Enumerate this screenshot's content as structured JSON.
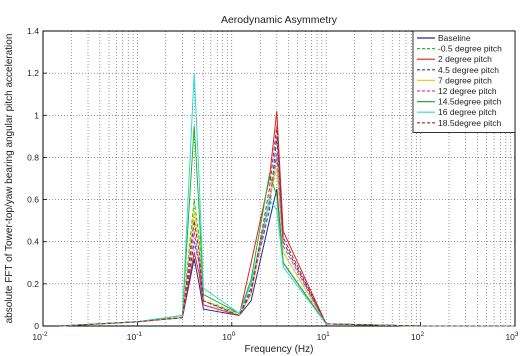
{
  "chart_data": {
    "type": "line",
    "title": "Aerodynamic Asymmetry",
    "xlabel": "Frequency (Hz)",
    "ylabel": "absolute FFT of Tower-top/yaw bearing angular pitch acceleration",
    "x_scale": "log",
    "xlim": [
      0.01,
      1000
    ],
    "ylim": [
      0,
      1.4
    ],
    "x_ticks": [
      {
        "value": 0.01,
        "base": "10",
        "exp": "-2"
      },
      {
        "value": 0.1,
        "base": "10",
        "exp": "-1"
      },
      {
        "value": 1,
        "base": "10",
        "exp": "0"
      },
      {
        "value": 10,
        "base": "10",
        "exp": "1"
      },
      {
        "value": 100,
        "base": "10",
        "exp": "2"
      },
      {
        "value": 1000,
        "base": "10",
        "exp": "3"
      }
    ],
    "y_ticks": [
      "0",
      "0.2",
      "0.4",
      "0.6",
      "0.8",
      "1",
      "1.2",
      "1.4"
    ],
    "grid": true,
    "legend_position": "top-right",
    "series": [
      {
        "name": "Baseline",
        "color": "#1f2a8c",
        "dash": "solid",
        "x": [
          0.015,
          0.1,
          0.3,
          0.4,
          0.45,
          0.5,
          1.2,
          1.6,
          2.5,
          3,
          3.5,
          10,
          100,
          1000
        ],
        "y": [
          0.0,
          0.02,
          0.04,
          0.32,
          0.2,
          0.08,
          0.05,
          0.12,
          0.5,
          0.65,
          0.3,
          0.01,
          0.0,
          0.0
        ]
      },
      {
        "name": "-0.5  degree pitch",
        "color": "#22c022",
        "dash": "dashed",
        "x": [
          0.015,
          0.1,
          0.3,
          0.4,
          0.45,
          0.5,
          1.2,
          1.6,
          2.5,
          3,
          3.5,
          10,
          100,
          1000
        ],
        "y": [
          0.0,
          0.02,
          0.05,
          0.6,
          0.42,
          0.12,
          0.06,
          0.2,
          0.58,
          0.8,
          0.35,
          0.01,
          0.0,
          0.0
        ]
      },
      {
        "name": "2     degree pitch",
        "color": "#e02020",
        "dash": "solid",
        "x": [
          0.015,
          0.1,
          0.3,
          0.4,
          0.45,
          0.5,
          1.2,
          1.6,
          2.5,
          3,
          3.5,
          10,
          100,
          1000
        ],
        "y": [
          0.0,
          0.02,
          0.04,
          0.35,
          0.25,
          0.1,
          0.05,
          0.3,
          0.7,
          1.02,
          0.45,
          0.01,
          0.0,
          0.0
        ]
      },
      {
        "name": "4.5   degree pitch",
        "color": "#3a3aa8",
        "dash": "dashed",
        "x": [
          0.015,
          0.1,
          0.3,
          0.4,
          0.45,
          0.5,
          1.2,
          1.6,
          2.5,
          3,
          3.5,
          10,
          100,
          1000
        ],
        "y": [
          0.0,
          0.02,
          0.04,
          0.4,
          0.3,
          0.12,
          0.05,
          0.18,
          0.55,
          0.9,
          0.4,
          0.01,
          0.0,
          0.0
        ]
      },
      {
        "name": "7     degree pitch",
        "color": "#e8d020",
        "dash": "solid",
        "x": [
          0.015,
          0.1,
          0.3,
          0.4,
          0.45,
          0.5,
          1.2,
          1.6,
          2.5,
          3,
          3.5,
          10,
          100,
          1000
        ],
        "y": [
          0.0,
          0.02,
          0.04,
          0.55,
          0.38,
          0.12,
          0.05,
          0.15,
          0.6,
          0.75,
          0.35,
          0.01,
          0.0,
          0.0
        ]
      },
      {
        "name": "12    degree pitch",
        "color": "#d040c8",
        "dash": "dashed",
        "x": [
          0.015,
          0.1,
          0.3,
          0.4,
          0.45,
          0.5,
          1.2,
          1.6,
          2.5,
          3,
          3.5,
          10,
          100,
          1000
        ],
        "y": [
          0.0,
          0.02,
          0.04,
          0.45,
          0.3,
          0.1,
          0.05,
          0.16,
          0.6,
          0.82,
          0.38,
          0.01,
          0.0,
          0.0
        ]
      },
      {
        "name": "14.5degree pitch",
        "color": "#28b028",
        "dash": "solid",
        "x": [
          0.015,
          0.1,
          0.3,
          0.4,
          0.45,
          0.5,
          1.2,
          1.6,
          2.5,
          3,
          3.5,
          10,
          100,
          1000
        ],
        "y": [
          0.0,
          0.02,
          0.05,
          0.95,
          0.55,
          0.15,
          0.06,
          0.22,
          0.72,
          0.62,
          0.3,
          0.01,
          0.0,
          0.0
        ]
      },
      {
        "name": "16    degree pitch",
        "color": "#30d8d8",
        "dash": "solid",
        "x": [
          0.015,
          0.1,
          0.3,
          0.4,
          0.45,
          0.5,
          1.2,
          1.6,
          2.5,
          3,
          3.5,
          10,
          100,
          1000
        ],
        "y": [
          0.0,
          0.02,
          0.05,
          1.2,
          0.7,
          0.18,
          0.06,
          0.2,
          0.6,
          0.55,
          0.28,
          0.01,
          0.0,
          0.0
        ]
      },
      {
        "name": "18.5degree pitch",
        "color": "#a02828",
        "dash": "dashed",
        "x": [
          0.015,
          0.1,
          0.3,
          0.4,
          0.45,
          0.5,
          1.2,
          1.6,
          2.5,
          3,
          3.5,
          10,
          100,
          1000
        ],
        "y": [
          0.0,
          0.02,
          0.04,
          0.5,
          0.35,
          0.12,
          0.05,
          0.16,
          0.65,
          0.95,
          0.42,
          0.01,
          0.0,
          0.0
        ]
      }
    ]
  }
}
